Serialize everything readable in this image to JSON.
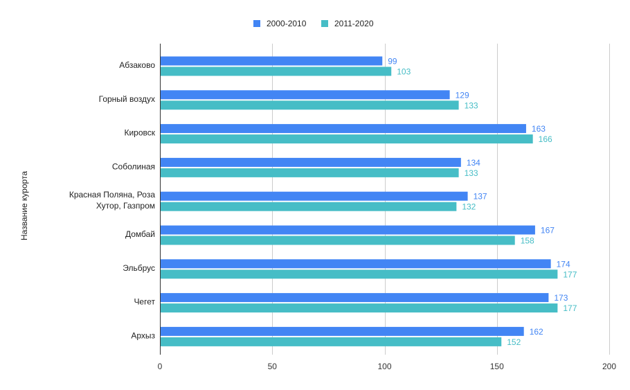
{
  "chart_data": {
    "type": "bar",
    "orientation": "horizontal",
    "title": "",
    "xlabel": "",
    "ylabel": "Название курорта",
    "xlim": [
      0,
      200
    ],
    "xticks": [
      0,
      50,
      100,
      150,
      200
    ],
    "grid": true,
    "legend_position": "top-center",
    "categories": [
      [
        "Абзаково"
      ],
      [
        "Горный воздух"
      ],
      [
        "Кировск"
      ],
      [
        "Соболиная"
      ],
      [
        "Красная Поляна, Роза",
        "Хутор, Газпром"
      ],
      [
        "Домбай"
      ],
      [
        "Эльбрус"
      ],
      [
        "Чегет"
      ],
      [
        "Архыз"
      ]
    ],
    "series": [
      {
        "name": "2000-2010",
        "color": "#4285f4",
        "label_color": "#4285f4",
        "values": [
          99,
          129,
          163,
          134,
          137,
          167,
          174,
          173,
          162
        ]
      },
      {
        "name": "2011-2020",
        "color": "#46bdc6",
        "label_color": "#46bdc6",
        "values": [
          103,
          133,
          166,
          133,
          132,
          158,
          177,
          177,
          152
        ]
      }
    ]
  }
}
